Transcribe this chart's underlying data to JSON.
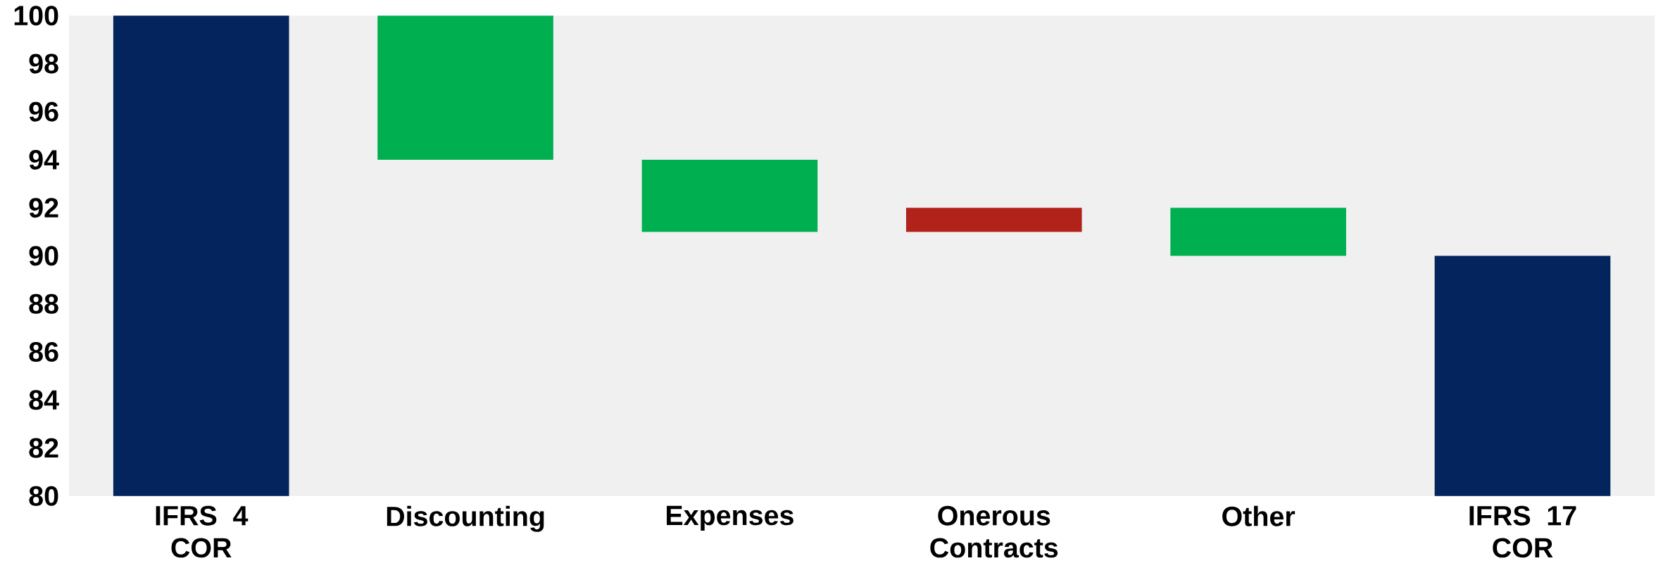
{
  "chart_data": {
    "type": "bar",
    "categories": [
      "IFRS 4 COR",
      "Discounting",
      "Expenses",
      "Onerous Contracts",
      "Other",
      "IFRS 17 COR"
    ],
    "base": [
      80,
      100,
      94,
      91,
      92,
      80
    ],
    "values": [
      20,
      -6,
      -3,
      1,
      -2,
      10
    ],
    "colors": [
      "#03245c",
      "#00b050",
      "#00b050",
      "#b0221a",
      "#00b050",
      "#03245c"
    ],
    "ylim": [
      80,
      100
    ],
    "yticks": [
      80,
      82,
      84,
      86,
      88,
      90,
      92,
      94,
      96,
      98,
      100
    ],
    "grid": false,
    "legend": false
  }
}
